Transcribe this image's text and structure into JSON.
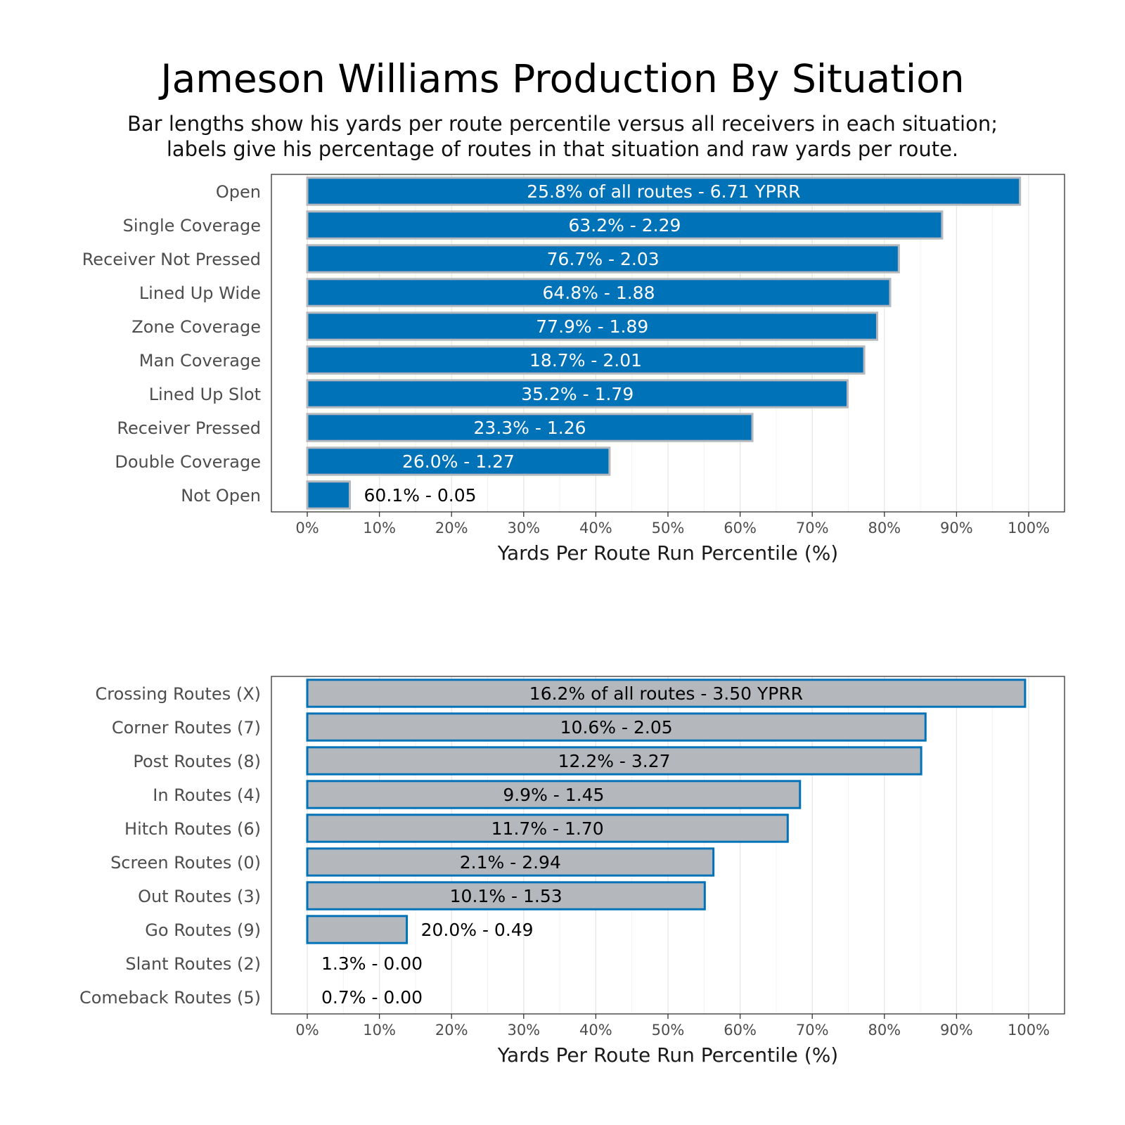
{
  "title": "Jameson Williams Production By Situation",
  "subtitle_line1": "Bar lengths show his yards per route percentile versus all receivers in each situation;",
  "subtitle_line2": "labels give his percentage of routes in that situation and raw yards per route.",
  "colors": {
    "top_fill": "#0072b8",
    "top_stroke": "#b4b8bd",
    "bottom_fill": "#b4b8bd",
    "bottom_stroke": "#0072b8"
  },
  "chart_data": [
    {
      "type": "bar",
      "orientation": "horizontal",
      "xlabel": "Yards Per Route Run Percentile (%)",
      "xlim": [
        0,
        100
      ],
      "xticks": [
        "0%",
        "10%",
        "20%",
        "30%",
        "40%",
        "50%",
        "60%",
        "70%",
        "80%",
        "90%",
        "100%"
      ],
      "grid": true,
      "categories": [
        "Open",
        "Single Coverage",
        "Receiver Not Pressed",
        "Lined Up Wide",
        "Zone Coverage",
        "Man Coverage",
        "Lined Up Slot",
        "Receiver Pressed",
        "Double Coverage",
        "Not Open"
      ],
      "values": [
        98.8,
        88.0,
        82.0,
        80.8,
        79.0,
        77.2,
        74.9,
        61.7,
        41.9,
        5.9
      ],
      "labels": [
        "25.8% of all routes - 6.71 YPRR",
        "63.2% - 2.29",
        "76.7% - 2.03",
        "64.8% - 1.88",
        "77.9% - 1.89",
        "18.7% - 2.01",
        "35.2% - 1.79",
        "23.3% - 1.26",
        "26.0% - 1.27",
        "60.1% - 0.05"
      ]
    },
    {
      "type": "bar",
      "orientation": "horizontal",
      "xlabel": "Yards Per Route Run Percentile (%)",
      "xlim": [
        0,
        100
      ],
      "xticks": [
        "0%",
        "10%",
        "20%",
        "30%",
        "40%",
        "50%",
        "60%",
        "70%",
        "80%",
        "90%",
        "100%"
      ],
      "grid": true,
      "categories": [
        "Crossing Routes (X)",
        "Corner Routes (7)",
        "Post Routes (8)",
        "In Routes (4)",
        "Hitch Routes (6)",
        "Screen Routes (0)",
        "Out Routes (3)",
        "Go Routes (9)",
        "Slant Routes (2)",
        "Comeback Routes (5)"
      ],
      "values": [
        99.5,
        85.7,
        85.1,
        68.3,
        66.6,
        56.3,
        55.1,
        13.8,
        0.0,
        0.0
      ],
      "labels": [
        "16.2% of all routes - 3.50 YPRR",
        "10.6% - 2.05",
        "12.2% - 3.27",
        "9.9% - 1.45",
        "11.7% - 1.70",
        "2.1% - 2.94",
        "10.1% - 1.53",
        "20.0% - 0.49",
        "1.3% - 0.00",
        "0.7% - 0.00"
      ]
    }
  ]
}
